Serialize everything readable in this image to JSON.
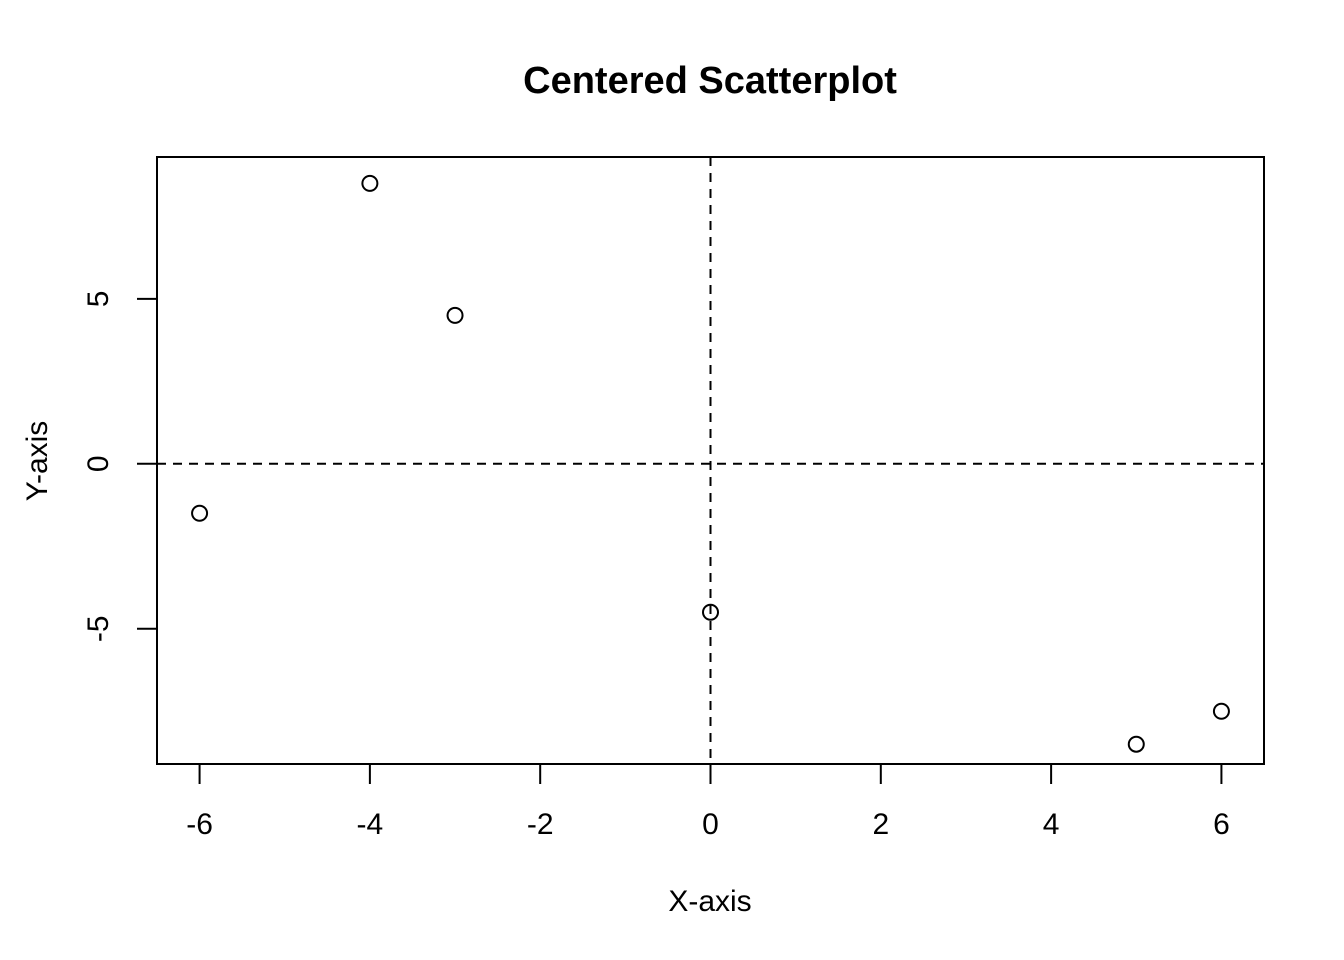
{
  "chart_data": {
    "type": "scatter",
    "title": "Centered Scatterplot",
    "xlabel": "X-axis",
    "ylabel": "Y-axis",
    "xlim": [
      -6.5,
      6.5
    ],
    "ylim": [
      -9.1,
      9.3
    ],
    "x_ticks": [
      -6,
      -4,
      -2,
      0,
      2,
      4,
      6
    ],
    "x_tick_labels": [
      "-6",
      "-4",
      "-2",
      "0",
      "2",
      "4",
      "6"
    ],
    "y_ticks": [
      -5,
      0,
      5
    ],
    "y_tick_labels": [
      "-5",
      "0",
      "5"
    ],
    "reference_lines": {
      "x": 0,
      "y": 0,
      "style": "dashed"
    },
    "grid": false,
    "legend": "none",
    "marker": "open-circle",
    "points": [
      {
        "x": -6,
        "y": -1.5
      },
      {
        "x": -4,
        "y": 8.5
      },
      {
        "x": -3,
        "y": 4.5
      },
      {
        "x": 0,
        "y": -4.5
      },
      {
        "x": 5,
        "y": -8.5
      },
      {
        "x": 6,
        "y": -7.5
      }
    ]
  }
}
